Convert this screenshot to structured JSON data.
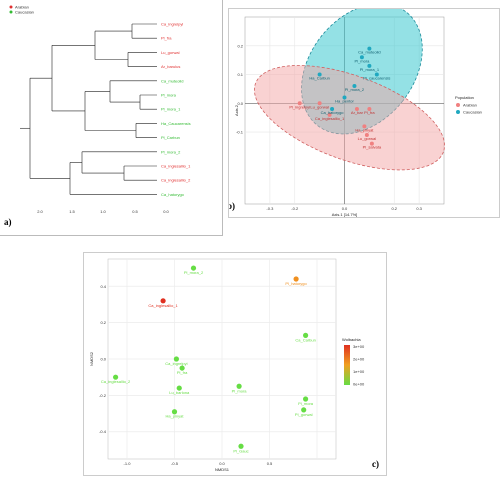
{
  "panel_labels": {
    "a": "a)",
    "b": "b)",
    "c": "c)"
  },
  "colors": {
    "arabian": "#e03030",
    "caucasian": "#33bb33",
    "ellipse_red": "#f4a6a6",
    "ellipse_cyan": "#3cc8d0",
    "b_red_pt": "#f08080",
    "b_cyan_pt": "#20a8c0"
  },
  "chart_data": [
    {
      "type": "dendrogram",
      "panel": "a",
      "legend": [
        {
          "name": "Arabian",
          "color": "#e03030"
        },
        {
          "name": "Caucasian",
          "color": "#33bb33"
        }
      ],
      "leaves": [
        {
          "label": "Ca_ingrelpyi",
          "group": "Arabian"
        },
        {
          "label": "Pl_fra",
          "group": "Arabian"
        },
        {
          "label": "Lu_gorwal",
          "group": "Arabian"
        },
        {
          "label": "Ar_barulus",
          "group": "Arabian"
        },
        {
          "label": "Ca_muteolid",
          "group": "Caucasian"
        },
        {
          "label": "Pl_mora",
          "group": "Caucasian"
        },
        {
          "label": "Pl_mora_1",
          "group": "Caucasian"
        },
        {
          "label": "Ha_Caucarensis",
          "group": "Caucasian"
        },
        {
          "label": "Pl_Carbun",
          "group": "Caucasian"
        },
        {
          "label": "Pl_mora_2",
          "group": "Caucasian"
        },
        {
          "label": "Ca_inglesallio_1",
          "group": "Arabian"
        },
        {
          "label": "Ca_inglesallio_2",
          "group": "Arabian"
        },
        {
          "label": "Ca_hatorygo",
          "group": "Caucasian"
        }
      ],
      "xticks": [
        "2.0",
        "1.5",
        "1.0",
        "0.5",
        "0.0"
      ]
    },
    {
      "type": "scatter",
      "panel": "b",
      "xlabel": "Axis.1 [14.7%]",
      "ylabel": "Axis.2",
      "xlim": [
        -0.4,
        0.4
      ],
      "ylim": [
        -0.35,
        0.3
      ],
      "xticks": [
        "-0.3",
        "-0.2",
        "0.0",
        "0.2",
        "0.3"
      ],
      "yticks": [
        "0.2",
        "0.1",
        "0.0",
        "-0.1"
      ],
      "legend_title": "Population",
      "legend": [
        {
          "name": "Arabian",
          "color": "#f08080"
        },
        {
          "name": "Caucasian",
          "color": "#20a8c0"
        }
      ],
      "series": [
        {
          "name": "Arabian",
          "points": [
            {
              "x": -0.18,
              "y": 0.0,
              "label": "Pl_ingrelpyi"
            },
            {
              "x": -0.1,
              "y": 0.0,
              "label": "Lu_gorwal"
            },
            {
              "x": -0.06,
              "y": -0.04,
              "label": "Ca_inglesallio_1"
            },
            {
              "x": 0.05,
              "y": -0.02,
              "label": "Ar_bar"
            },
            {
              "x": 0.1,
              "y": -0.02,
              "label": "Pl_fra"
            },
            {
              "x": 0.08,
              "y": -0.08,
              "label": "Ha_pinyat"
            },
            {
              "x": 0.09,
              "y": -0.11,
              "label": "Lu_gorwal"
            },
            {
              "x": 0.11,
              "y": -0.14,
              "label": "Pl_salvata"
            }
          ]
        },
        {
          "name": "Caucasian",
          "points": [
            {
              "x": -0.1,
              "y": 0.1,
              "label": "Ha_Carbun"
            },
            {
              "x": 0.1,
              "y": 0.19,
              "label": "Ca_muteolid"
            },
            {
              "x": 0.07,
              "y": 0.16,
              "label": "Pl_mora"
            },
            {
              "x": 0.1,
              "y": 0.13,
              "label": "Pl_mora_1"
            },
            {
              "x": 0.13,
              "y": 0.1,
              "label": "Pl_caucarensis"
            },
            {
              "x": 0.04,
              "y": 0.06,
              "label": "Pl_mora_2"
            },
            {
              "x": 0.0,
              "y": 0.02,
              "label": "Ha_pentor"
            },
            {
              "x": -0.05,
              "y": -0.02,
              "label": "Ca_hatorygo"
            }
          ]
        }
      ]
    },
    {
      "type": "scatter",
      "panel": "c",
      "xlabel": "NMDS1",
      "ylabel": "NMDS2",
      "xlim": [
        -1.2,
        1.2
      ],
      "ylim": [
        -0.55,
        0.55
      ],
      "xticks": [
        "-1.0",
        "-0.5",
        "0.0",
        "0.5"
      ],
      "yticks": [
        "0.4",
        "0.2",
        "0.0",
        "-0.2",
        "-0.4"
      ],
      "legend_title": "Wolbachia",
      "legend_ticks": [
        "3e+00",
        "2e+00",
        "1e+00",
        "0e+00"
      ],
      "points": [
        {
          "x": -0.3,
          "y": 0.5,
          "label": "Pl_mora_2",
          "w": 0.0
        },
        {
          "x": 0.78,
          "y": 0.44,
          "label": "Pl_hatorygo",
          "w": 2.0
        },
        {
          "x": -0.62,
          "y": 0.32,
          "label": "Ca_inglesallio_1",
          "w": 3.0
        },
        {
          "x": 0.88,
          "y": 0.13,
          "label": "Ca_Carbun",
          "w": 0.0
        },
        {
          "x": -0.48,
          "y": 0.0,
          "label": "Ca_ingrelpyi",
          "w": 0.0
        },
        {
          "x": -0.42,
          "y": -0.05,
          "label": "Pl_fra",
          "w": 0.0
        },
        {
          "x": -1.12,
          "y": -0.1,
          "label": "Ca_inglesallio_2",
          "w": 0.0
        },
        {
          "x": -0.45,
          "y": -0.16,
          "label": "Lu_barlona",
          "w": 0.0
        },
        {
          "x": 0.18,
          "y": -0.15,
          "label": "Pl_mora",
          "w": 0.0
        },
        {
          "x": 0.88,
          "y": -0.22,
          "label": "Pl_mora",
          "w": 0.0
        },
        {
          "x": 0.86,
          "y": -0.28,
          "label": "Pl_gorwal",
          "w": 0.0
        },
        {
          "x": -0.5,
          "y": -0.29,
          "label": "Ha_pinyat",
          "w": 0.0
        },
        {
          "x": 0.2,
          "y": -0.48,
          "label": "Pl_Gauc",
          "w": 0.0
        }
      ]
    }
  ]
}
